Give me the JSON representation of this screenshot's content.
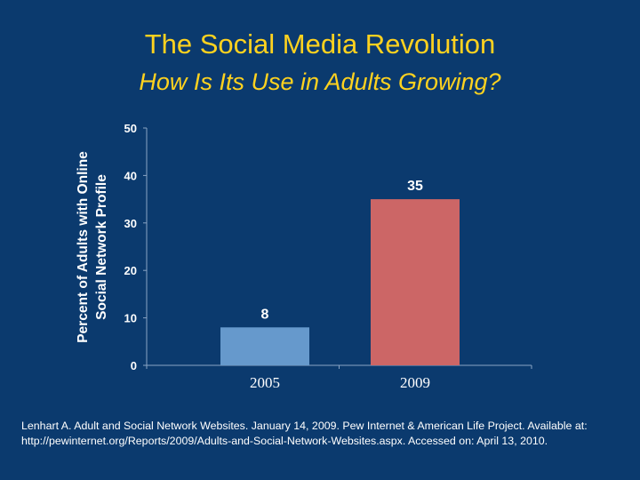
{
  "slide": {
    "title": "The Social Media Revolution",
    "subtitle": "How Is Its Use in Adults Growing?",
    "source": "Lenhart A. Adult and Social Network Websites. January 14, 2009. Pew Internet & American Life Project. Available at: http://pewinternet.org/Reports/2009/Adults-and-Social-Network-Websites.aspx. Accessed on: April 13, 2010."
  },
  "colors": {
    "background": "#0b3a6e",
    "title": "#ffd21f",
    "text": "#ffffff",
    "bar_2005": "#6699cc",
    "bar_2009": "#cc6666",
    "axis": "#ffffff"
  },
  "chart_data": {
    "type": "bar",
    "categories": [
      "2005",
      "2009"
    ],
    "values": [
      8,
      35
    ],
    "data_labels": [
      "8",
      "35"
    ],
    "ylabel_lines": [
      "Percent of Adults with Online",
      "Social Network Profile"
    ],
    "xlabel": "",
    "ylim": [
      0,
      50
    ],
    "yticks": [
      0,
      10,
      20,
      30,
      40,
      50
    ],
    "grid": false,
    "legend": "none"
  }
}
